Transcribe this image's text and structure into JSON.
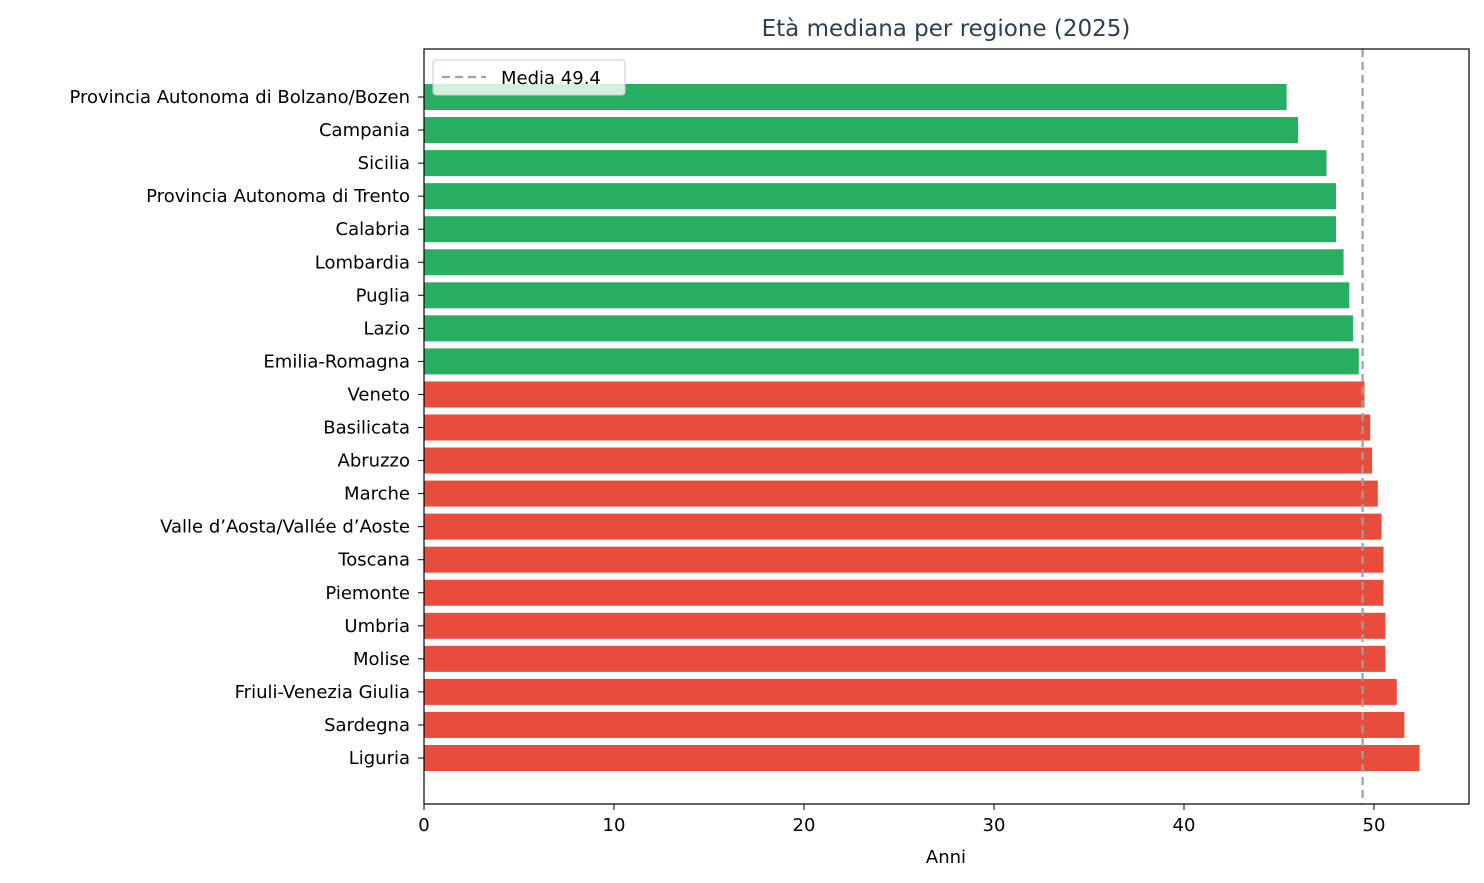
{
  "chart_data": {
    "type": "bar",
    "orientation": "horizontal",
    "title": "Età mediana per regione (2025)",
    "xlabel": "Anni",
    "ylabel": "",
    "xlim": [
      0,
      55
    ],
    "xticks": [
      0,
      10,
      20,
      30,
      40,
      50
    ],
    "grid": false,
    "legend_position": "top-left",
    "categories": [
      "Provincia Autonoma di Bolzano/Bozen",
      "Campania",
      "Sicilia",
      "Provincia Autonoma di Trento",
      "Calabria",
      "Lombardia",
      "Puglia",
      "Lazio",
      "Emilia-Romagna",
      "Veneto",
      "Basilicata",
      "Abruzzo",
      "Marche",
      "Valle d’Aosta/Vallée d’Aoste",
      "Toscana",
      "Piemonte",
      "Umbria",
      "Molise",
      "Friuli-Venezia Giulia",
      "Sardegna",
      "Liguria"
    ],
    "values": [
      45.4,
      46.0,
      47.5,
      48.0,
      48.0,
      48.4,
      48.7,
      48.9,
      49.2,
      49.5,
      49.8,
      49.9,
      50.2,
      50.4,
      50.5,
      50.5,
      50.6,
      50.6,
      51.2,
      51.6,
      52.4
    ],
    "reference_line": {
      "value": 49.4,
      "label": "Media 49.4",
      "color": "#95a5a6",
      "style": "dashed"
    },
    "colors": {
      "below_mean": "#27ae60",
      "above_mean": "#e74c3c",
      "title": "#2c3e50"
    }
  }
}
